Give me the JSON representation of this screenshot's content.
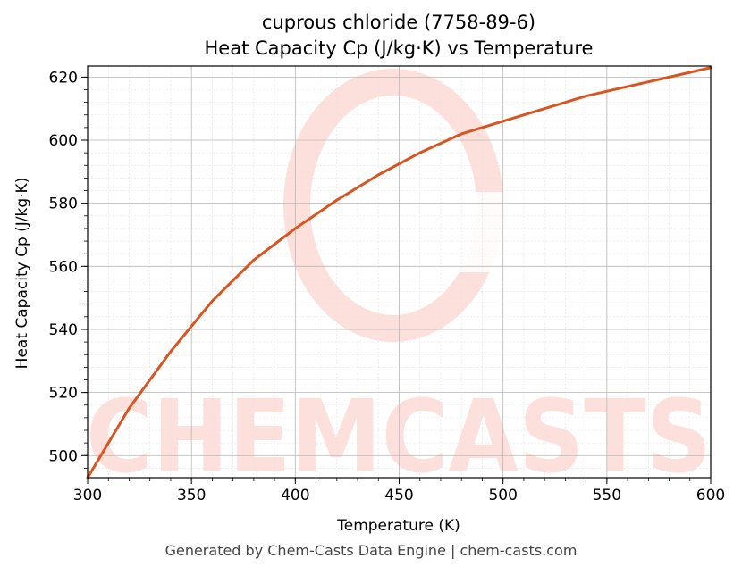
{
  "chart_data": {
    "type": "line",
    "title": "cuprous chloride (7758-89-6)",
    "subtitle": "Heat Capacity Cp (J/kg·K) vs Temperature",
    "xlabel": "Temperature (K)",
    "ylabel": "Heat Capacity Cp (J/kg·K)",
    "xlim": [
      300,
      600
    ],
    "ylim": [
      493,
      623.5
    ],
    "x_ticks": [
      300,
      350,
      400,
      450,
      500,
      550,
      600
    ],
    "y_ticks": [
      500,
      520,
      540,
      560,
      580,
      600,
      620
    ],
    "grid": true,
    "legend": "none",
    "series": [
      {
        "color": "#d9541e",
        "x": [
          300,
          320,
          340,
          360,
          380,
          400,
          420,
          440,
          460,
          480,
          500,
          520,
          540,
          560,
          580,
          600
        ],
        "values": [
          493,
          515,
          533,
          549,
          562,
          572,
          581,
          589,
          596,
          602,
          606,
          610,
          614,
          617,
          620,
          623
        ]
      }
    ]
  },
  "watermark": {
    "text": "CHEMCASTS",
    "color": "#fde0db"
  },
  "footer": "Generated by Chem-Casts Data Engine | chem-casts.com"
}
